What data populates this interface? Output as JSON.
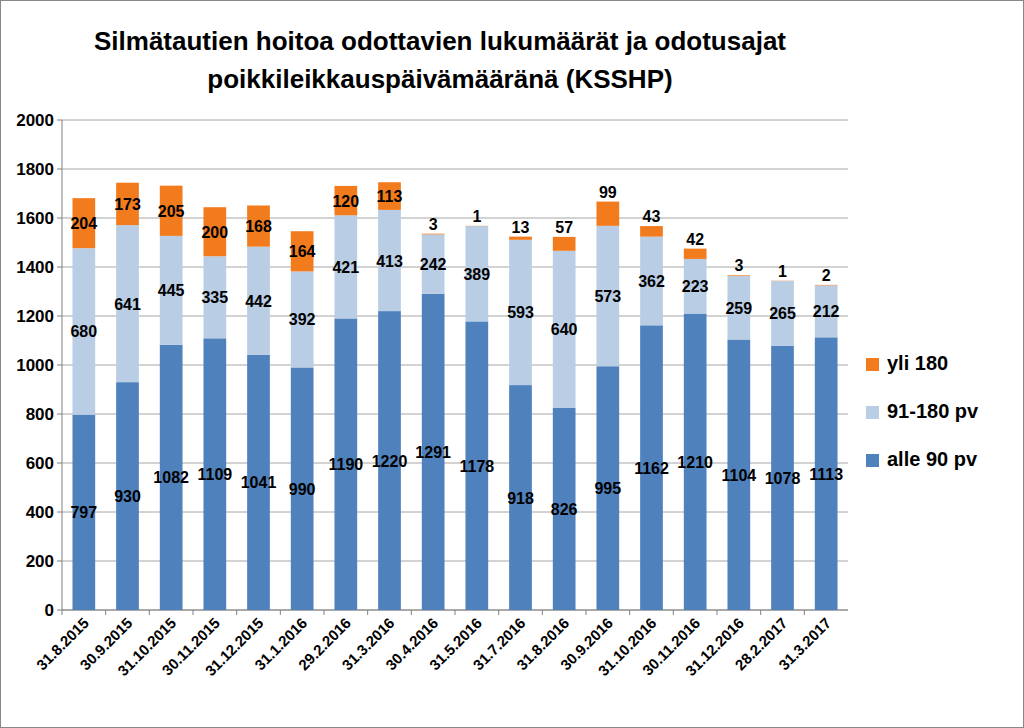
{
  "chart_data": {
    "type": "bar",
    "stacked": true,
    "data_labels": true,
    "grid": true,
    "legend": "right",
    "title": [
      "Silmätautien hoitoa odottavien lukumäärät ja odotusajat",
      "poikkileikkauspäivämääränä (KSSHP)"
    ],
    "categories": [
      "31.8.2015",
      "30.9.2015",
      "31.10.2015",
      "30.11.2015",
      "31.12.2015",
      "31.1.2016",
      "29.2.2016",
      "31.3.2016",
      "30.4.2016",
      "31.5.2016",
      "31.7.2016",
      "31.8.2016",
      "30.9.2016",
      "31.10.2016",
      "30.11.2016",
      "31.12.2016",
      "28.2.2017",
      "31.3.2017"
    ],
    "series": [
      {
        "name": "alle 90 pv",
        "color": "#4f81bd",
        "values": [
          797,
          930,
          1082,
          1109,
          1041,
          990,
          1190,
          1220,
          1291,
          1178,
          918,
          826,
          995,
          1162,
          1210,
          1104,
          1078,
          1113
        ]
      },
      {
        "name": "91-180 pv",
        "color": "#b9cde5",
        "values": [
          680,
          641,
          445,
          335,
          442,
          392,
          421,
          413,
          242,
          389,
          593,
          640,
          573,
          362,
          223,
          259,
          265,
          212
        ]
      },
      {
        "name": "yli 180",
        "color": "#f27b1d",
        "values": [
          204,
          173,
          205,
          200,
          168,
          164,
          120,
          113,
          3,
          1,
          13,
          57,
          99,
          43,
          42,
          3,
          1,
          2
        ]
      }
    ],
    "ylim": [
      0,
      2000
    ],
    "yticks": [
      0,
      200,
      400,
      600,
      800,
      1000,
      1200,
      1400,
      1600,
      1800,
      2000
    ]
  }
}
